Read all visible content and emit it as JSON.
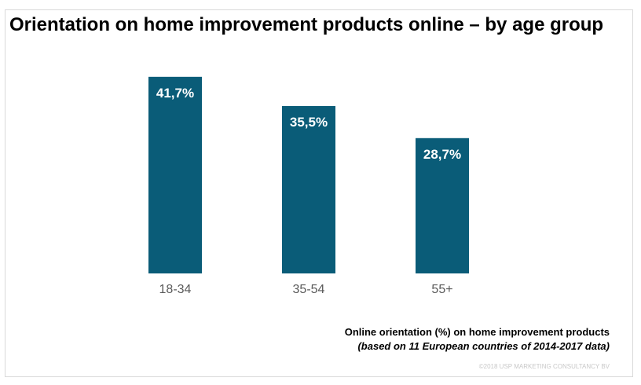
{
  "chart_data": {
    "type": "bar",
    "title": "Orientation on home improvement products online – by age group",
    "categories": [
      "18-34",
      "35-54",
      "55+"
    ],
    "values": [
      41.7,
      35.5,
      28.7
    ],
    "value_labels": [
      "41,7%",
      "35,5%",
      "28,7%"
    ],
    "ylim": [
      0,
      50
    ],
    "grid": false,
    "legend": "none",
    "bar_color": "#0a5c78",
    "note_line1": "Online orientation (%) on home improvement products",
    "note_line2": "(based on 11 European countries of 2014-2017 data)"
  },
  "copyright": "©2018 USP MARKETING CONSULTANCY BV"
}
